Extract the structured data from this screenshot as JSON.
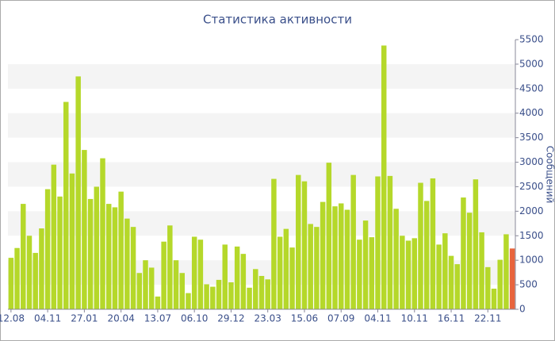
{
  "chart_data": {
    "type": "bar",
    "title": "Статистика активности",
    "y_label": "Сообщений",
    "categories": [
      "12.08",
      null,
      null,
      null,
      null,
      null,
      "04.11",
      null,
      null,
      null,
      null,
      null,
      "27.01",
      null,
      null,
      null,
      null,
      null,
      "20.04",
      null,
      null,
      null,
      null,
      null,
      "13.07",
      null,
      null,
      null,
      null,
      null,
      "06.10",
      null,
      null,
      null,
      null,
      null,
      "29.12",
      null,
      null,
      null,
      null,
      null,
      "23.03",
      null,
      null,
      null,
      null,
      null,
      "15.06",
      null,
      null,
      null,
      null,
      null,
      "07.09",
      null,
      null,
      null,
      null,
      null,
      "04.11",
      null,
      null,
      null,
      null,
      null,
      "10.11",
      null,
      null,
      null,
      null,
      null,
      "16.11",
      null,
      null,
      null,
      null,
      null,
      "22.11",
      null,
      null,
      null,
      null
    ],
    "values": [
      1050,
      1250,
      2150,
      1500,
      1150,
      1650,
      2450,
      2950,
      2300,
      4230,
      2770,
      4750,
      3250,
      2250,
      2500,
      3080,
      2150,
      2080,
      2400,
      1850,
      1680,
      740,
      1000,
      850,
      260,
      1380,
      1710,
      1000,
      740,
      330,
      1480,
      1420,
      510,
      460,
      600,
      1320,
      550,
      1280,
      1130,
      440,
      820,
      680,
      610,
      2660,
      1480,
      1640,
      1260,
      2740,
      2610,
      1740,
      1680,
      2190,
      2990,
      2100,
      2160,
      2030,
      2740,
      1420,
      1810,
      1470,
      2710,
      5380,
      2720,
      2050,
      1500,
      1400,
      1450,
      2580,
      2210,
      2670,
      1320,
      1550,
      1090,
      920,
      2280,
      1970,
      2650,
      1570,
      860,
      420,
      1010,
      1530,
      1240
    ],
    "color": "#b5d82a",
    "current_color": "#e8643c",
    "ylim": [
      0,
      5500
    ],
    "yticks": [
      0,
      500,
      1000,
      1500,
      2000,
      2500,
      3000,
      3500,
      4000,
      4500,
      5000,
      5500
    ],
    "grid_bands": true
  }
}
